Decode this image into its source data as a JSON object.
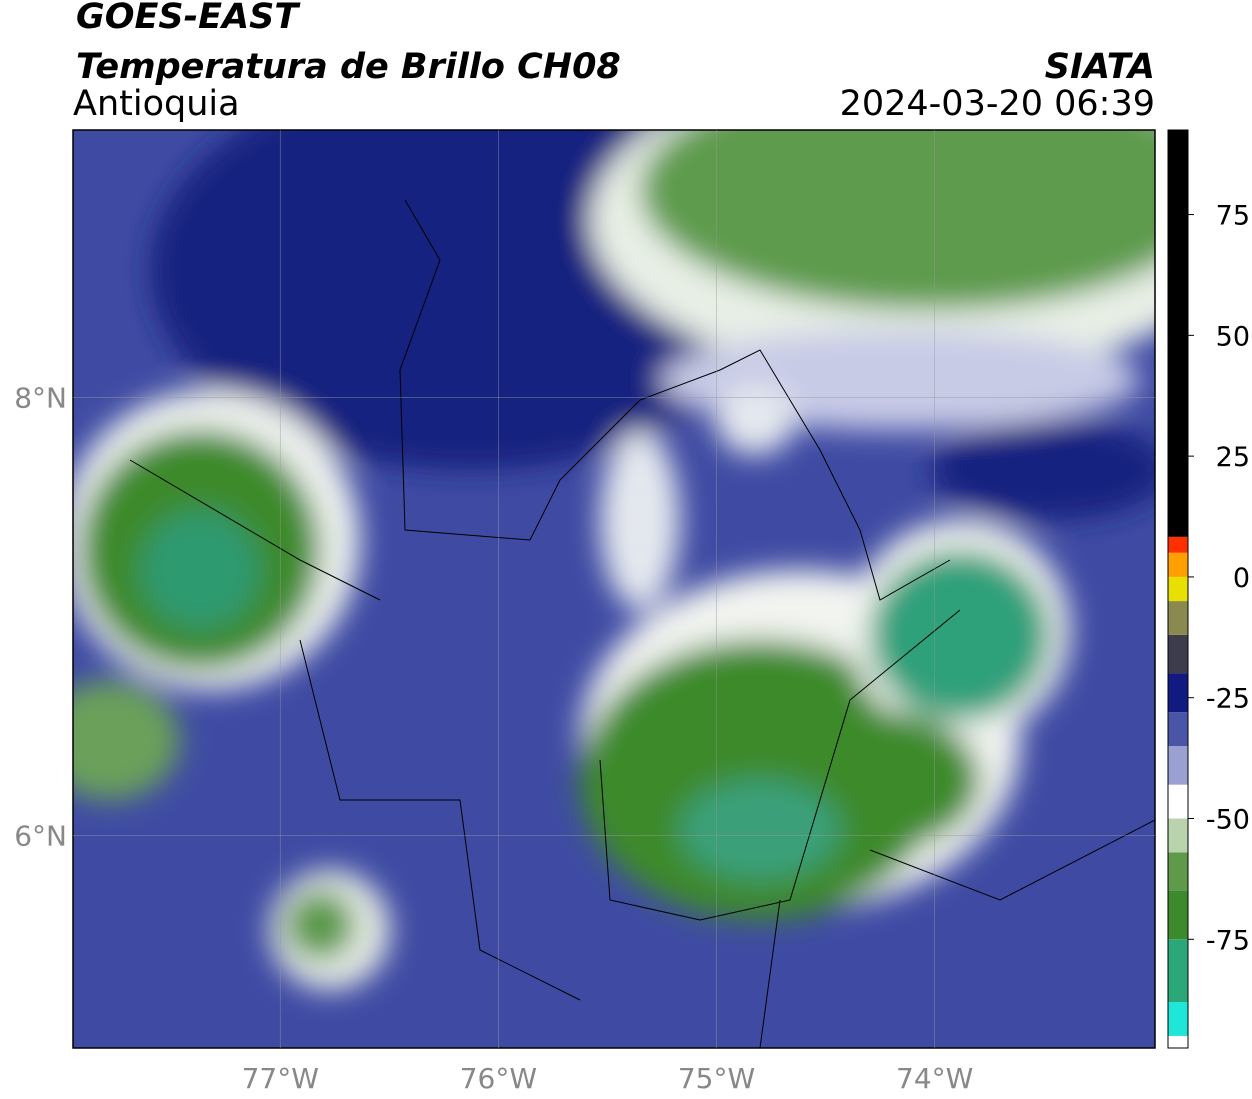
{
  "header": {
    "title": "GOES-EAST",
    "subtitle": "Temperatura de Brillo CH08",
    "region": "Antioquia",
    "source": "SIATA",
    "datetime": "2024-03-20 06:39"
  },
  "map": {
    "xlim": [
      -77.95,
      -72.99
    ],
    "ylim": [
      5.03,
      9.22
    ],
    "xticks": [
      {
        "value": -77,
        "label": "77°W"
      },
      {
        "value": -76,
        "label": "76°W"
      },
      {
        "value": -75,
        "label": "75°W"
      },
      {
        "value": -74,
        "label": "74°W"
      }
    ],
    "yticks": [
      {
        "value": 6,
        "label": "6°N"
      },
      {
        "value": 8,
        "label": "8°N"
      }
    ],
    "grid": true
  },
  "colorbar": {
    "lim": [
      -97.5,
      92.5
    ],
    "ticks": [
      75,
      50,
      25,
      0,
      -25,
      -50,
      -75
    ],
    "stops": [
      {
        "value": -97.5,
        "color": "#ffffff"
      },
      {
        "value": -95,
        "color": "#1ee6d8"
      },
      {
        "value": -88,
        "color": "#2aa87a"
      },
      {
        "value": -75,
        "color": "#3d8a2c"
      },
      {
        "value": -65,
        "color": "#5e9a4a"
      },
      {
        "value": -57,
        "color": "#b9d3ad"
      },
      {
        "value": -50,
        "color": "#ffffff"
      },
      {
        "value": -43,
        "color": "#9aa0d2"
      },
      {
        "value": -35,
        "color": "#4a55a8"
      },
      {
        "value": -28,
        "color": "#101a80"
      },
      {
        "value": -20,
        "color": "#3c3c4c"
      },
      {
        "value": -12,
        "color": "#8a8a50"
      },
      {
        "value": -5,
        "color": "#e8e000"
      },
      {
        "value": 0,
        "color": "#ffa000"
      },
      {
        "value": 5,
        "color": "#ff3000"
      },
      {
        "value": 8.3,
        "color": "#000000"
      }
    ]
  }
}
